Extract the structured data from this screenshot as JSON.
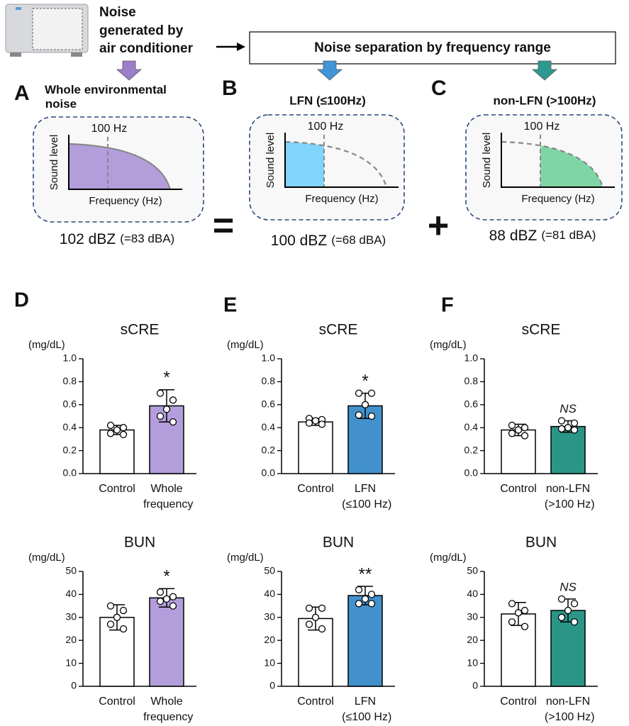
{
  "header": {
    "source_lines": [
      "Noise",
      "generated by",
      "air conditioner"
    ],
    "separation_label": "Noise separation by frequency range"
  },
  "panels_top": [
    {
      "letter": "A",
      "title": "Whole environmental noise",
      "cutoff_label": "100 Hz",
      "y_label": "Sound level",
      "x_label": "Frequency (Hz)",
      "level": "102 dBZ",
      "level_note": "(=83 dBA)",
      "color": "#b39ddb"
    },
    {
      "letter": "B",
      "title": "LFN (≤100Hz)",
      "cutoff_label": "100 Hz",
      "y_label": "Sound level",
      "x_label": "Frequency (Hz)",
      "level": "100 dBZ",
      "level_note": "(=68 dBA)",
      "color": "#81d4fa"
    },
    {
      "letter": "C",
      "title": "non-LFN (>100Hz)",
      "cutoff_label": "100 Hz",
      "y_label": "Sound level",
      "x_label": "Frequency (Hz)",
      "level": "88 dBZ",
      "level_note": "(=81 dBA)",
      "color": "#7fd6a4"
    }
  ],
  "operators": [
    "=",
    "+"
  ],
  "chart_data": [
    {
      "type": "bar",
      "panel": "D",
      "title": "sCRE",
      "y_label": "(mg/dL)",
      "categories": [
        "Control",
        "Whole frequency"
      ],
      "values": [
        0.38,
        0.59
      ],
      "errors": [
        0.04,
        0.14
      ],
      "points": [
        [
          0.42,
          0.4,
          0.38,
          0.35,
          0.34
        ],
        [
          0.7,
          0.64,
          0.56,
          0.5,
          0.45
        ]
      ],
      "colors": [
        "#ffffff",
        "#b39ddb"
      ],
      "significance": "*",
      "significance_style": "normal",
      "ylim": [
        0,
        1
      ],
      "yticks": [
        {
          "value": 0,
          "label": "0.0"
        },
        {
          "value": 0.2,
          "label": "0.2"
        },
        {
          "value": 0.4,
          "label": "0.4"
        },
        {
          "value": 0.6,
          "label": "0.6"
        },
        {
          "value": 0.8,
          "label": "0.8"
        },
        {
          "value": 1,
          "label": "1.0"
        }
      ]
    },
    {
      "type": "bar",
      "panel": "E",
      "title": "sCRE",
      "y_label": "(mg/dL)",
      "categories": [
        "Control",
        "LFN (≤100 Hz)"
      ],
      "values": [
        0.45,
        0.59
      ],
      "errors": [
        0.03,
        0.11
      ],
      "points": [
        [
          0.48,
          0.47,
          0.46,
          0.44,
          0.43
        ],
        [
          0.7,
          0.7,
          0.6,
          0.51,
          0.5
        ]
      ],
      "colors": [
        "#ffffff",
        "#4291cc"
      ],
      "significance": "*",
      "significance_style": "normal",
      "ylim": [
        0,
        1
      ],
      "yticks": [
        {
          "value": 0,
          "label": "0.0"
        },
        {
          "value": 0.2,
          "label": "0.2"
        },
        {
          "value": 0.4,
          "label": "0.4"
        },
        {
          "value": 0.6,
          "label": "0.6"
        },
        {
          "value": 0.8,
          "label": "0.8"
        },
        {
          "value": 1,
          "label": "1.0"
        }
      ]
    },
    {
      "type": "bar",
      "panel": "F",
      "title": "sCRE",
      "y_label": "(mg/dL)",
      "categories": [
        "Control",
        "non-LFN (>100 Hz)"
      ],
      "values": [
        0.38,
        0.41
      ],
      "errors": [
        0.05,
        0.05
      ],
      "points": [
        [
          0.42,
          0.4,
          0.38,
          0.35,
          0.33
        ],
        [
          0.46,
          0.44,
          0.4,
          0.39,
          0.38
        ]
      ],
      "colors": [
        "#ffffff",
        "#2b9688"
      ],
      "significance": "NS",
      "significance_style": "italic",
      "ylim": [
        0,
        1
      ],
      "yticks": [
        {
          "value": 0,
          "label": "0.0"
        },
        {
          "value": 0.2,
          "label": "0.2"
        },
        {
          "value": 0.4,
          "label": "0.4"
        },
        {
          "value": 0.6,
          "label": "0.6"
        },
        {
          "value": 0.8,
          "label": "0.8"
        },
        {
          "value": 1,
          "label": "1.0"
        }
      ]
    },
    {
      "type": "bar",
      "title": "BUN",
      "y_label": "(mg/dL)",
      "categories": [
        "Control",
        "Whole frequency"
      ],
      "values": [
        30,
        38.5
      ],
      "errors": [
        5.5,
        4
      ],
      "points": [
        [
          35,
          33,
          30,
          27,
          25
        ],
        [
          41,
          39,
          38,
          37,
          35
        ]
      ],
      "colors": [
        "#ffffff",
        "#b39ddb"
      ],
      "significance": "*",
      "significance_style": "normal",
      "ylim": [
        0,
        50
      ],
      "yticks": [
        0,
        10,
        20,
        30,
        40,
        50
      ]
    },
    {
      "type": "bar",
      "title": "BUN",
      "y_label": "(mg/dL)",
      "categories": [
        "Control",
        "LFN (≤100 Hz)"
      ],
      "values": [
        29.5,
        39.5
      ],
      "errors": [
        5,
        4
      ],
      "points": [
        [
          34,
          34,
          30,
          27,
          25
        ],
        [
          42,
          40,
          38,
          36,
          36
        ]
      ],
      "colors": [
        "#ffffff",
        "#4291cc"
      ],
      "significance": "**",
      "significance_style": "normal",
      "ylim": [
        0,
        50
      ],
      "yticks": [
        0,
        10,
        20,
        30,
        40,
        50
      ]
    },
    {
      "type": "bar",
      "title": "BUN",
      "y_label": "(mg/dL)",
      "categories": [
        "Control",
        "non-LFN (>100 Hz)"
      ],
      "values": [
        31.5,
        33
      ],
      "errors": [
        5,
        5
      ],
      "points": [
        [
          36,
          33,
          32,
          28,
          26
        ],
        [
          38,
          36,
          33,
          30,
          28
        ]
      ],
      "colors": [
        "#ffffff",
        "#2b9688"
      ],
      "significance": "NS",
      "significance_style": "italic",
      "ylim": [
        0,
        50
      ],
      "yticks": [
        0,
        10,
        20,
        30,
        40,
        50
      ]
    }
  ]
}
